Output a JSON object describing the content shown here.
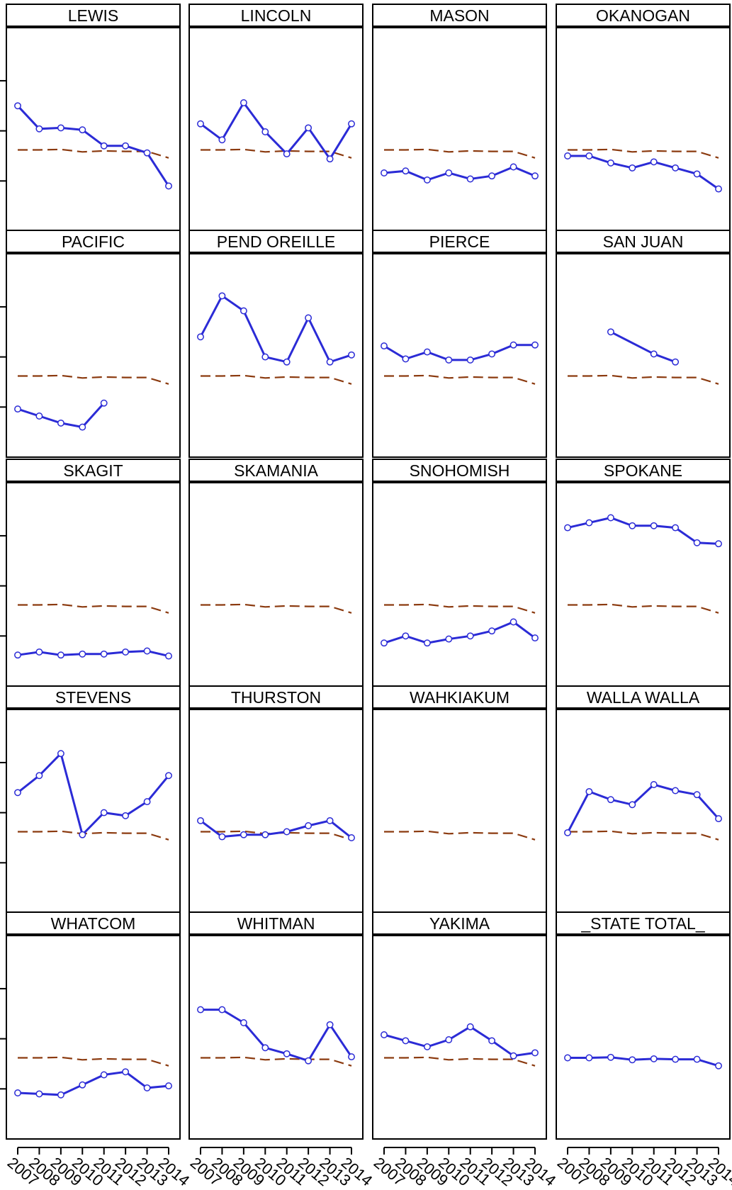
{
  "chart_data": {
    "type": "line",
    "layout": "faceted small multiples, 4 columns x 5 rows",
    "x": [
      "2007",
      "2008",
      "2009",
      "2010",
      "2011",
      "2012",
      "2013",
      "2014"
    ],
    "y_scale": "unlabeled",
    "colors": {
      "county": "#2b2bd6",
      "state": "#8b3a0f"
    },
    "reference_series": [
      0.56,
      0.56,
      0.565,
      0.54,
      0.55,
      0.545,
      0.545,
      0.48
    ],
    "panels": [
      {
        "name": "LEWIS",
        "values": [
          1.0,
          0.77,
          0.78,
          0.76,
          0.6,
          0.6,
          0.53,
          0.2
        ]
      },
      {
        "name": "LINCOLN",
        "values": [
          0.82,
          0.66,
          1.03,
          0.74,
          0.52,
          0.78,
          0.47,
          0.82
        ]
      },
      {
        "name": "MASON",
        "values": [
          0.33,
          0.35,
          0.26,
          0.33,
          0.27,
          0.3,
          0.39,
          0.3
        ]
      },
      {
        "name": "OKANOGAN",
        "values": [
          0.5,
          0.5,
          0.43,
          0.38,
          0.44,
          0.38,
          0.32,
          0.17
        ]
      },
      {
        "name": "PACIFIC",
        "values": [
          0.23,
          0.16,
          0.09,
          0.05,
          0.29,
          null,
          null,
          null
        ]
      },
      {
        "name": "PEND OREILLE",
        "values": [
          0.95,
          1.36,
          1.21,
          0.75,
          0.7,
          1.14,
          0.7,
          0.77
        ]
      },
      {
        "name": "PIERCE",
        "values": [
          0.86,
          0.73,
          0.8,
          0.72,
          0.72,
          0.78,
          0.87,
          0.87
        ]
      },
      {
        "name": "SAN JUAN",
        "values": [
          null,
          null,
          1.0,
          null,
          0.78,
          0.7,
          null,
          null
        ]
      },
      {
        "name": "SKAGIT",
        "values": [
          0.06,
          0.09,
          0.06,
          0.07,
          0.07,
          0.09,
          0.1,
          0.05
        ]
      },
      {
        "name": "SKAMANIA",
        "values": [
          null,
          null,
          null,
          null,
          null,
          null,
          null,
          null
        ]
      },
      {
        "name": "SNOHOMISH",
        "values": [
          0.18,
          0.25,
          0.18,
          0.22,
          0.25,
          0.3,
          0.39,
          0.23
        ]
      },
      {
        "name": "SPOKANE",
        "values": [
          1.33,
          1.38,
          1.43,
          1.35,
          1.35,
          1.33,
          1.18,
          1.17
        ]
      },
      {
        "name": "STEVENS",
        "values": [
          0.95,
          1.12,
          1.34,
          0.53,
          0.75,
          0.72,
          0.86,
          1.12
        ]
      },
      {
        "name": "THURSTON",
        "values": [
          0.67,
          0.51,
          0.53,
          0.53,
          0.56,
          0.62,
          0.67,
          0.5
        ]
      },
      {
        "name": "WAHKIAKUM",
        "values": [
          null,
          null,
          null,
          null,
          null,
          null,
          null,
          null
        ]
      },
      {
        "name": "WALLA WALLA",
        "values": [
          0.55,
          0.96,
          0.88,
          0.83,
          1.03,
          0.97,
          0.93,
          0.69
        ]
      },
      {
        "name": "WHATCOM",
        "values": [
          0.21,
          0.2,
          0.19,
          0.29,
          0.39,
          0.42,
          0.26,
          0.28
        ]
      },
      {
        "name": "WHITMAN",
        "values": [
          1.04,
          1.04,
          0.91,
          0.66,
          0.6,
          0.53,
          0.89,
          0.57
        ]
      },
      {
        "name": "YAKIMA",
        "values": [
          0.79,
          0.73,
          0.67,
          0.74,
          0.87,
          0.73,
          0.58,
          0.61
        ]
      },
      {
        "name": "_STATE TOTAL_",
        "values": [
          0.56,
          0.56,
          0.565,
          0.54,
          0.55,
          0.545,
          0.545,
          0.48
        ]
      }
    ]
  }
}
